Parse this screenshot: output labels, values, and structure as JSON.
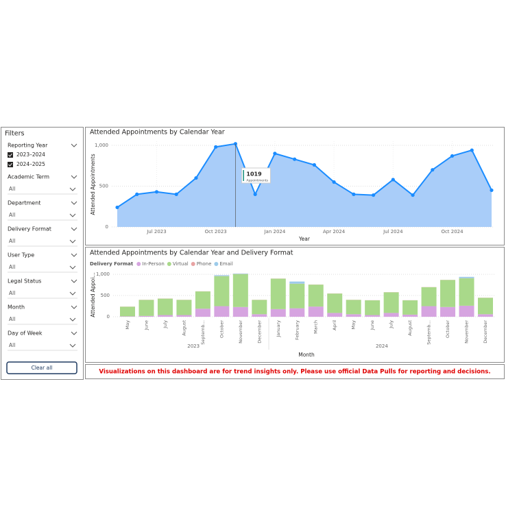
{
  "filters": {
    "title": "Filters",
    "groups": [
      {
        "label": "Reporting Year",
        "options": [
          "2023–2024",
          "2024–2025"
        ]
      },
      {
        "label": "Academic Term",
        "value": "All"
      },
      {
        "label": "Department",
        "value": "All"
      },
      {
        "label": "Delivery Format",
        "value": "All"
      },
      {
        "label": "User Type",
        "value": "All"
      },
      {
        "label": "Legal Status",
        "value": "All"
      },
      {
        "label": "Month",
        "value": "All"
      },
      {
        "label": "Day of Week",
        "value": "All"
      }
    ],
    "button": "Clear all"
  },
  "chart_data": [
    {
      "type": "area",
      "title": "Attended Appointments by Calendar Year",
      "y_label": "Attended Appointments",
      "x_label": "Year",
      "x": [
        "2023-05",
        "2023-06",
        "2023-07",
        "2023-08",
        "2023-09",
        "2023-10",
        "2023-11",
        "2023-12",
        "2024-01",
        "2024-02",
        "2024-03",
        "2024-04",
        "2024-05",
        "2024-06",
        "2024-07",
        "2024-08",
        "2024-09",
        "2024-10",
        "2024-11",
        "2024-12"
      ],
      "values": [
        240,
        400,
        430,
        400,
        600,
        980,
        1019,
        400,
        900,
        830,
        760,
        550,
        400,
        390,
        580,
        390,
        700,
        870,
        940,
        450
      ],
      "color": "#1a8cff",
      "fill": "#a9cdf9",
      "ylim": [
        0,
        1050
      ],
      "yticks": [
        0,
        500,
        {
          "value": 1000,
          "label": "1,000"
        }
      ],
      "xticks": [
        {
          "value": "2023-07",
          "label": "Jul 2023"
        },
        {
          "value": "2023-10",
          "label": "Oct 2023"
        },
        {
          "value": "2024-01",
          "label": "Jan 2024"
        },
        {
          "value": "2024-04",
          "label": "Apr 2024"
        },
        {
          "value": "2024-07",
          "label": "Jul 2024"
        },
        {
          "value": "2024-10",
          "label": "Oct 2024"
        }
      ],
      "grid": true,
      "tooltip": {
        "index": 6,
        "value": "1019",
        "label": "Appointments"
      }
    },
    {
      "type": "stacked_bar",
      "title": "Attended Appointments by Calendar Year and Delivery Format",
      "legend_title": "Delivery Format",
      "y_label": "Attended Appoi…",
      "x_label": "Month",
      "categories": [
        "May",
        "June",
        "July",
        "August",
        "Septemb…",
        "October",
        "November",
        "December",
        "January",
        "February",
        "March",
        "April",
        "May",
        "June",
        "July",
        "August",
        "Septemb…",
        "October",
        "November",
        "December"
      ],
      "groups": [
        {
          "label": "2023",
          "count": 8
        },
        {
          "label": "2024",
          "count": 12
        }
      ],
      "series": [
        {
          "name": "In-Person",
          "color": "#d6a4e0",
          "values": [
            10,
            20,
            40,
            40,
            190,
            250,
            230,
            60,
            180,
            200,
            240,
            90,
            60,
            40,
            90,
            50,
            250,
            230,
            260,
            60
          ]
        },
        {
          "name": "Virtual",
          "color": "#a9d98a",
          "values": [
            227,
            377,
            387,
            357,
            407,
            707,
            776,
            337,
            717,
            577,
            517,
            457,
            337,
            347,
            487,
            337,
            447,
            637,
            647,
            387
          ]
        },
        {
          "name": "Phone",
          "color": "#e8a3a3",
          "values": [
            3,
            3,
            3,
            3,
            3,
            3,
            3,
            3,
            3,
            3,
            3,
            3,
            3,
            3,
            3,
            3,
            3,
            3,
            3,
            3
          ]
        },
        {
          "name": "Email",
          "color": "#9ccbea",
          "values": [
            0,
            0,
            0,
            0,
            0,
            20,
            10,
            0,
            0,
            50,
            0,
            0,
            0,
            0,
            0,
            0,
            0,
            0,
            30,
            0
          ]
        }
      ],
      "ylim": [
        0,
        1050
      ],
      "yticks": [
        0,
        500,
        {
          "value": 1000,
          "label": "1,000"
        }
      ],
      "grid": true
    }
  ],
  "notice": "Visualizations on this dashboard are for trend insights only. Please use official Data Pulls for reporting and decisions."
}
